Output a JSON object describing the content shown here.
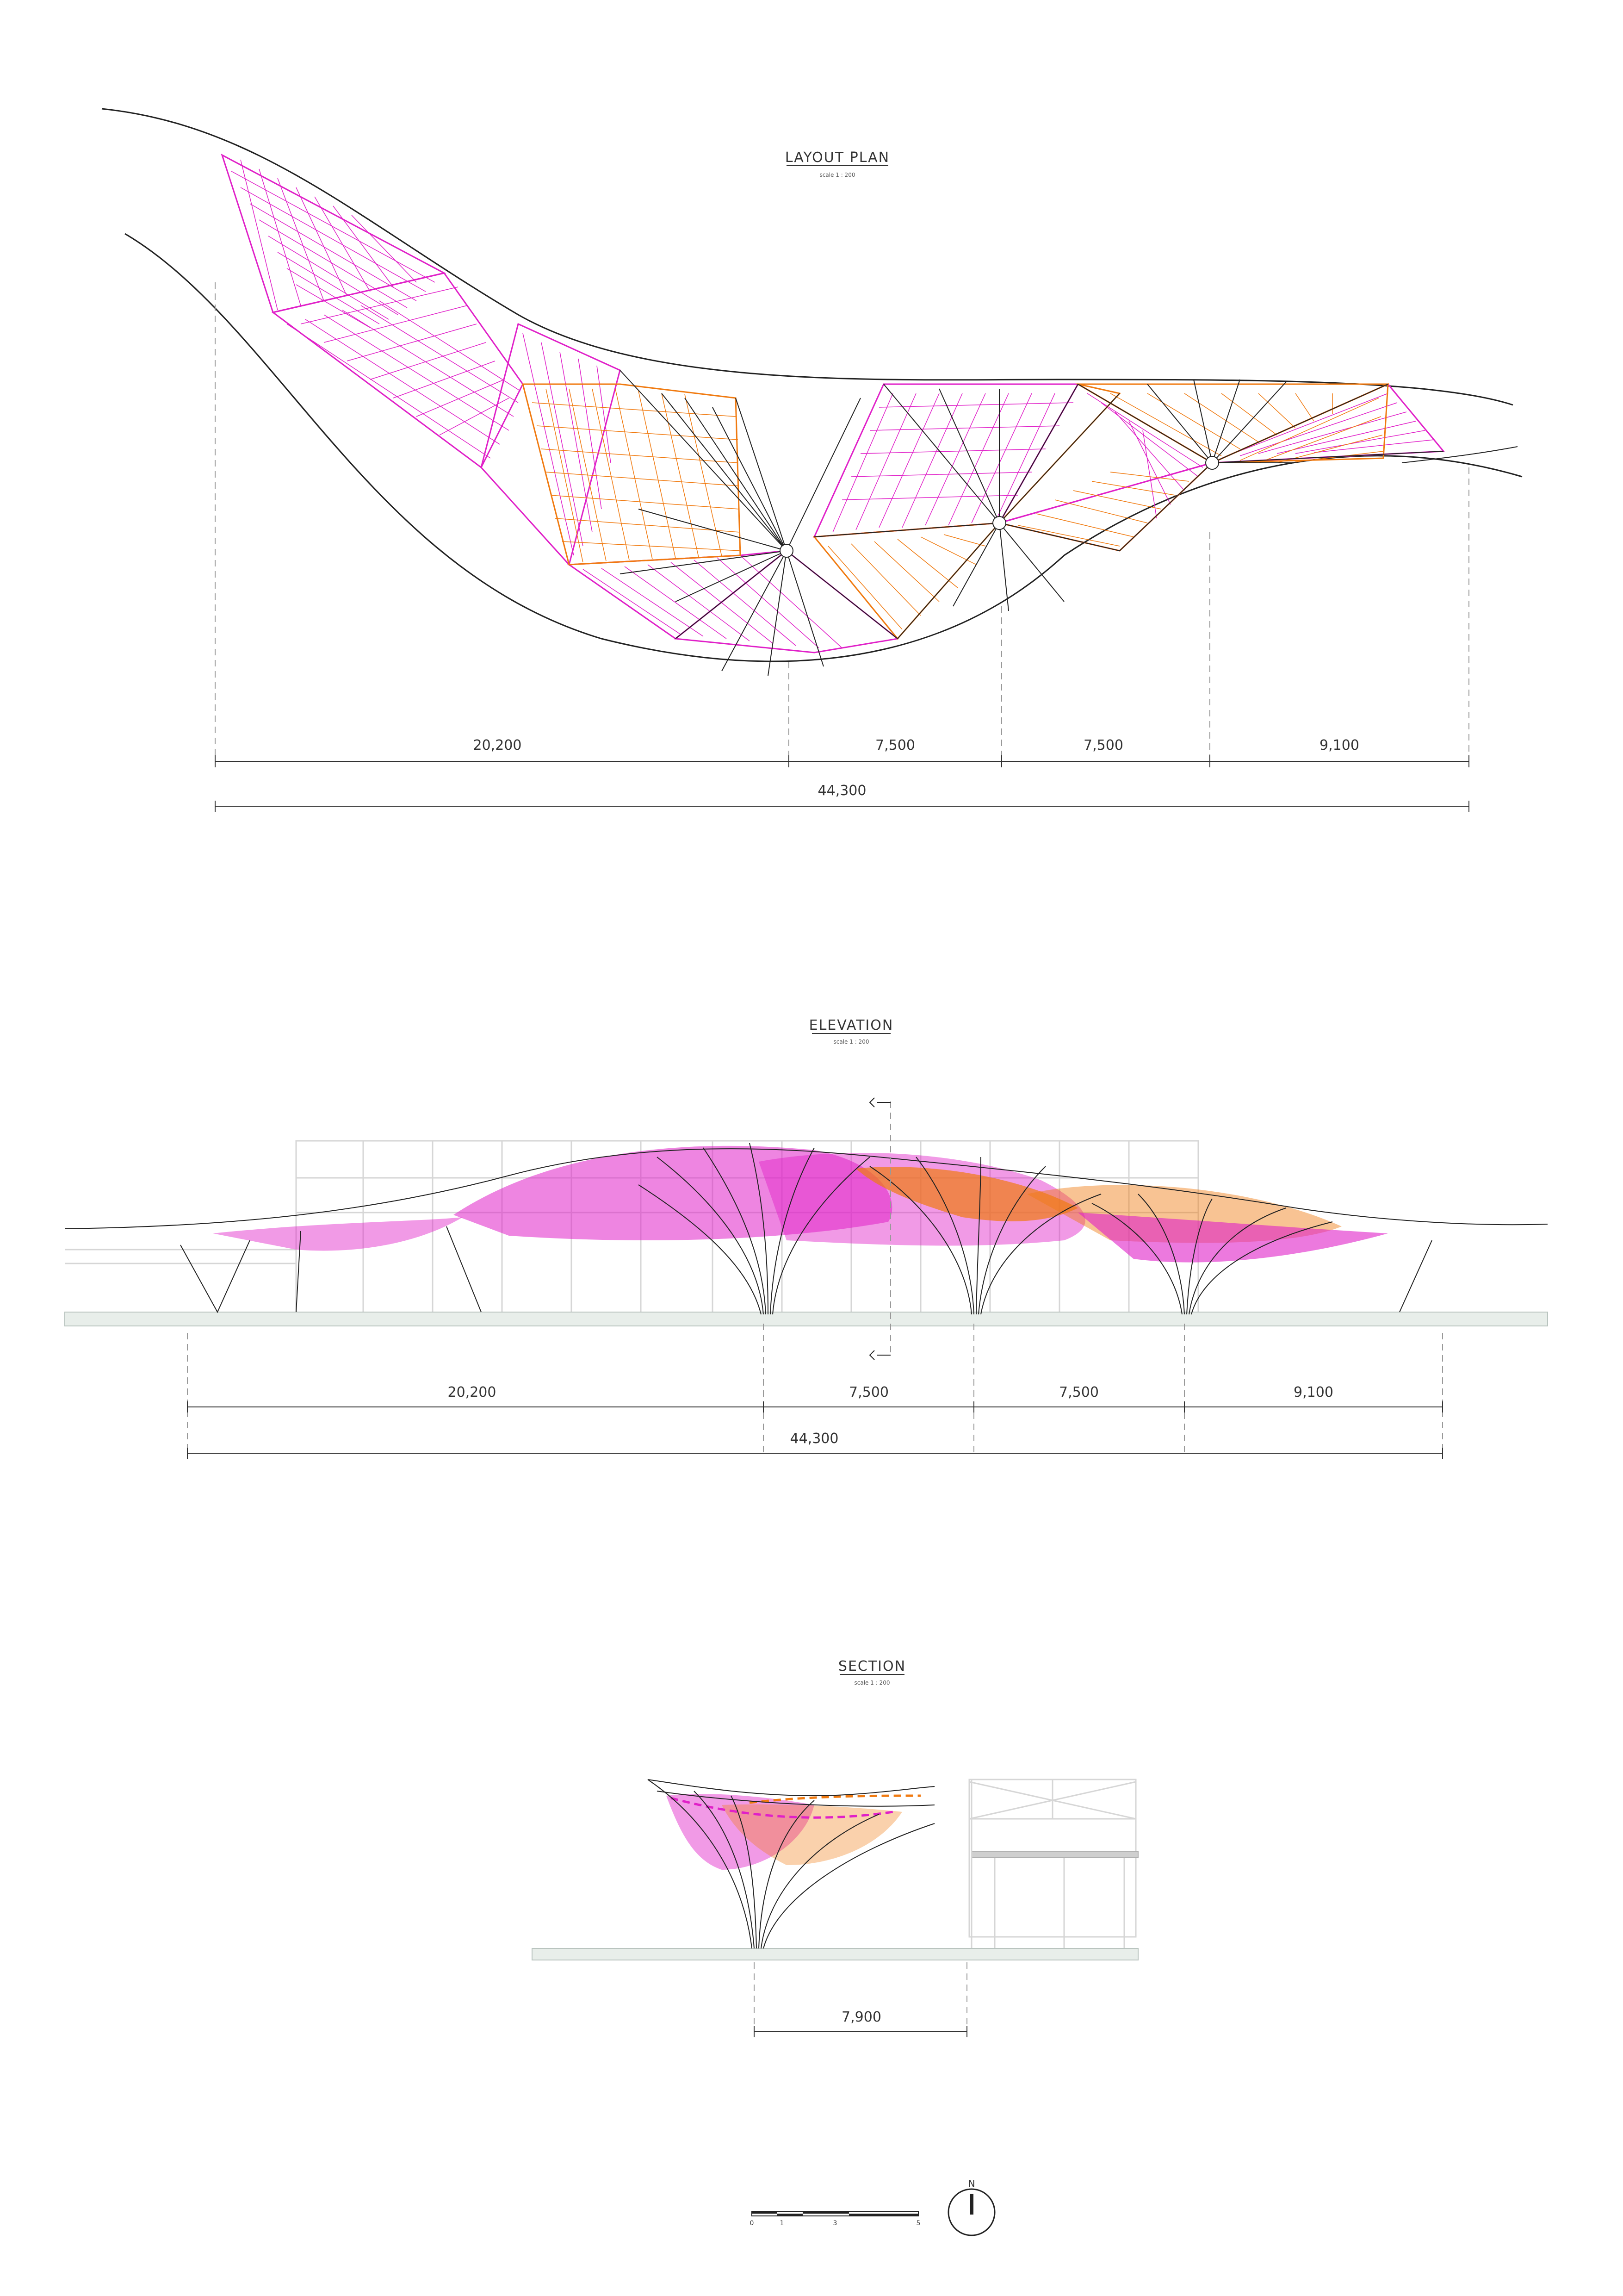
{
  "plan": {
    "title": "LAYOUT PLAN",
    "scale": "scale 1 : 200",
    "dims": [
      "20,200",
      "7,500",
      "7,500",
      "9,100"
    ],
    "total": "44,300"
  },
  "elevation": {
    "title": "ELEVATION",
    "scale": "scale 1 : 200",
    "dims": [
      "20,200",
      "7,500",
      "7,500",
      "9,100"
    ],
    "total": "44,300"
  },
  "section": {
    "title": "SECTION",
    "scale": "scale 1 : 200",
    "dim": "7,900"
  },
  "scalebar": {
    "ticks": [
      "0",
      "1",
      "3",
      "5"
    ]
  },
  "north": {
    "label": "N",
    "icon": "north-arrow-icon"
  },
  "colors": {
    "magenta": "#e020c8",
    "orange": "#f07a10",
    "ink": "#222222",
    "ghost": "#d6d6d6",
    "ground": "#e8eeea"
  }
}
